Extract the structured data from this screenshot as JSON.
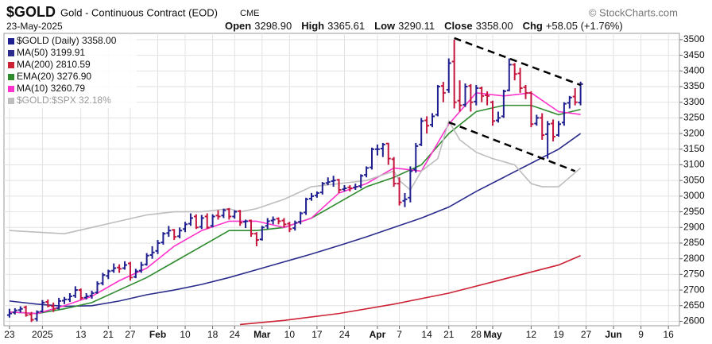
{
  "chart_data": {
    "type": "ohlc",
    "title": "$GOLD",
    "subtitle": "Gold - Continuous Contract (EOD)",
    "exchange": "CME",
    "source": "© StockCharts.com",
    "date": "23-May-2025",
    "summary": [
      {
        "label": "Open",
        "value": "3298.90"
      },
      {
        "label": "High",
        "value": "3365.61"
      },
      {
        "label": "Low",
        "value": "3290.11"
      },
      {
        "label": "Close",
        "value": "3358.00"
      },
      {
        "label": "Chg",
        "value": "+58.05 (+1.76%)"
      }
    ],
    "up_color": "#1f1f8f",
    "down_color": "#c4143c",
    "grid": true,
    "legend": "top-left",
    "xlim": [
      -1,
      122
    ],
    "ylim": [
      2586,
      3520
    ],
    "yticks": [
      2600,
      2650,
      2700,
      2750,
      2800,
      2850,
      2900,
      2950,
      3000,
      3050,
      3100,
      3150,
      3200,
      3250,
      3300,
      3350,
      3400,
      3450,
      3500
    ],
    "xticks": [
      {
        "value": 0,
        "label": "23"
      },
      {
        "value": 6,
        "label": "2025"
      },
      {
        "value": 13,
        "label": "13"
      },
      {
        "value": 18,
        "label": "21"
      },
      {
        "value": 22,
        "label": "27"
      },
      {
        "value": 27,
        "label": "Feb"
      },
      {
        "value": 32,
        "label": "10"
      },
      {
        "value": 37,
        "label": "18"
      },
      {
        "value": 41,
        "label": "24"
      },
      {
        "value": 46,
        "label": "Mar"
      },
      {
        "value": 51,
        "label": "10"
      },
      {
        "value": 56,
        "label": "17"
      },
      {
        "value": 61,
        "label": "24"
      },
      {
        "value": 67,
        "label": "Apr"
      },
      {
        "value": 71,
        "label": "7"
      },
      {
        "value": 76,
        "label": "14"
      },
      {
        "value": 80,
        "label": "21"
      },
      {
        "value": 85,
        "label": "28"
      },
      {
        "value": 88,
        "label": "May"
      },
      {
        "value": 95,
        "label": "12"
      },
      {
        "value": 100,
        "label": "19"
      },
      {
        "value": 105,
        "label": "27"
      },
      {
        "value": 110,
        "label": "Jun"
      },
      {
        "value": 115,
        "label": "9"
      },
      {
        "value": 120,
        "label": "16"
      }
    ],
    "series": [
      {
        "name": "$GOLD (Daily) 3358.00",
        "color": "#1f1f8f",
        "kind": "ohlc",
        "values": [
          [
            2620,
            2640,
            2612,
            2625
          ],
          [
            2628,
            2642,
            2622,
            2635
          ],
          [
            2636,
            2648,
            2628,
            2640
          ],
          [
            2645,
            2650,
            2615,
            2620
          ],
          [
            2622,
            2630,
            2598,
            2605
          ],
          [
            2608,
            2635,
            2600,
            2630
          ],
          [
            2632,
            2668,
            2628,
            2660
          ],
          [
            2662,
            2670,
            2645,
            2650
          ],
          [
            2648,
            2660,
            2630,
            2640
          ],
          [
            2642,
            2675,
            2638,
            2665
          ],
          [
            2666,
            2678,
            2655,
            2670
          ],
          [
            2670,
            2690,
            2662,
            2680
          ],
          [
            2682,
            2712,
            2675,
            2700
          ],
          [
            2700,
            2705,
            2668,
            2675
          ],
          [
            2676,
            2690,
            2670,
            2680
          ],
          [
            2682,
            2698,
            2672,
            2690
          ],
          [
            2692,
            2728,
            2688,
            2720
          ],
          [
            2722,
            2755,
            2715,
            2748
          ],
          [
            2745,
            2765,
            2735,
            2760
          ],
          [
            2762,
            2785,
            2755,
            2770
          ],
          [
            2772,
            2782,
            2755,
            2768
          ],
          [
            2770,
            2792,
            2765,
            2780
          ],
          [
            2785,
            2790,
            2730,
            2740
          ],
          [
            2742,
            2768,
            2738,
            2760
          ],
          [
            2762,
            2790,
            2755,
            2780
          ],
          [
            2782,
            2818,
            2778,
            2810
          ],
          [
            2812,
            2840,
            2800,
            2820
          ],
          [
            2825,
            2860,
            2815,
            2850
          ],
          [
            2852,
            2885,
            2845,
            2880
          ],
          [
            2882,
            2905,
            2870,
            2890
          ],
          [
            2892,
            2895,
            2860,
            2870
          ],
          [
            2872,
            2900,
            2865,
            2890
          ],
          [
            2895,
            2918,
            2885,
            2910
          ],
          [
            2912,
            2945,
            2905,
            2930
          ],
          [
            2935,
            2942,
            2895,
            2900
          ],
          [
            2902,
            2940,
            2895,
            2930
          ],
          [
            2935,
            2945,
            2895,
            2900
          ],
          [
            2905,
            2942,
            2900,
            2935
          ],
          [
            2938,
            2955,
            2925,
            2935
          ],
          [
            2938,
            2960,
            2930,
            2955
          ],
          [
            2958,
            2962,
            2925,
            2935
          ],
          [
            2935,
            2955,
            2928,
            2950
          ],
          [
            2952,
            2956,
            2905,
            2915
          ],
          [
            2918,
            2925,
            2898,
            2920
          ],
          [
            2922,
            2925,
            2870,
            2880
          ],
          [
            2880,
            2885,
            2840,
            2860
          ],
          [
            2862,
            2905,
            2858,
            2900
          ],
          [
            2905,
            2930,
            2895,
            2920
          ],
          [
            2922,
            2935,
            2910,
            2925
          ],
          [
            2928,
            2932,
            2910,
            2920
          ],
          [
            2922,
            2930,
            2900,
            2910
          ],
          [
            2912,
            2918,
            2885,
            2895
          ],
          [
            2898,
            2922,
            2890,
            2915
          ],
          [
            2918,
            2950,
            2910,
            2945
          ],
          [
            2948,
            2995,
            2940,
            2990
          ],
          [
            2992,
            3010,
            2985,
            3000
          ],
          [
            3002,
            3015,
            2995,
            3010
          ],
          [
            3012,
            3045,
            3005,
            3040
          ],
          [
            3042,
            3060,
            3035,
            3045
          ],
          [
            3048,
            3065,
            3030,
            3050
          ],
          [
            3052,
            3055,
            3010,
            3020
          ],
          [
            3022,
            3035,
            3015,
            3025
          ],
          [
            3028,
            3035,
            3015,
            3025
          ],
          [
            3028,
            3040,
            3020,
            3030
          ],
          [
            3032,
            3070,
            3025,
            3065
          ],
          [
            3068,
            3095,
            3060,
            3090
          ],
          [
            3092,
            3155,
            3085,
            3150
          ],
          [
            3150,
            3165,
            3130,
            3150
          ],
          [
            3152,
            3170,
            3125,
            3165
          ],
          [
            3168,
            3170,
            3100,
            3120
          ],
          [
            3118,
            3125,
            3030,
            3040
          ],
          [
            3040,
            3060,
            2970,
            2980
          ],
          [
            2985,
            3010,
            2965,
            2990
          ],
          [
            2995,
            3095,
            2980,
            3080
          ],
          [
            3085,
            3170,
            3075,
            3160
          ],
          [
            3165,
            3250,
            3160,
            3240
          ],
          [
            3242,
            3255,
            3200,
            3225
          ],
          [
            3228,
            3265,
            3220,
            3255
          ],
          [
            3260,
            3355,
            3255,
            3350
          ],
          [
            3352,
            3365,
            3300,
            3330
          ],
          [
            3340,
            3440,
            3330,
            3425
          ],
          [
            3430,
            3500,
            3280,
            3300
          ],
          [
            3305,
            3370,
            3270,
            3290
          ],
          [
            3292,
            3360,
            3285,
            3350
          ],
          [
            3352,
            3358,
            3270,
            3300
          ],
          [
            3302,
            3355,
            3290,
            3345
          ],
          [
            3345,
            3350,
            3300,
            3320
          ],
          [
            3322,
            3335,
            3290,
            3320
          ],
          [
            3300,
            3305,
            3225,
            3240
          ],
          [
            3242,
            3270,
            3235,
            3250
          ],
          [
            3255,
            3340,
            3250,
            3335
          ],
          [
            3338,
            3440,
            3335,
            3420
          ],
          [
            3420,
            3425,
            3370,
            3390
          ],
          [
            3392,
            3410,
            3330,
            3345
          ],
          [
            3348,
            3355,
            3310,
            3330
          ],
          [
            3330,
            3335,
            3220,
            3230
          ],
          [
            3232,
            3260,
            3225,
            3250
          ],
          [
            3250,
            3265,
            3180,
            3195
          ],
          [
            3198,
            3240,
            3120,
            3230
          ],
          [
            3232,
            3245,
            3175,
            3190
          ],
          [
            3195,
            3240,
            3190,
            3230
          ],
          [
            3235,
            3300,
            3225,
            3295
          ],
          [
            3298,
            3320,
            3280,
            3315
          ],
          [
            3318,
            3345,
            3290,
            3300
          ],
          [
            3298.9,
            3365.61,
            3290.11,
            3358
          ]
        ]
      },
      {
        "name": "MA(50) 3199.91",
        "color": "#2b2b8c",
        "kind": "line",
        "x": [
          0,
          5,
          10,
          15,
          20,
          25,
          30,
          35,
          40,
          45,
          50,
          55,
          60,
          65,
          70,
          75,
          80,
          85,
          90,
          95,
          100,
          104
        ],
        "values": [
          2665,
          2655,
          2648,
          2650,
          2665,
          2685,
          2700,
          2718,
          2740,
          2765,
          2790,
          2815,
          2842,
          2870,
          2900,
          2930,
          2965,
          3015,
          3060,
          3105,
          3150,
          3200
        ]
      },
      {
        "name": "MA(200) 2810.59",
        "color": "#cc2233",
        "kind": "line",
        "x": [
          42,
          50,
          60,
          70,
          80,
          90,
          100,
          104
        ],
        "values": [
          2590,
          2603,
          2625,
          2655,
          2690,
          2735,
          2780,
          2810
        ]
      },
      {
        "name": "EMA(20) 3276.90",
        "color": "#2e8b2e",
        "kind": "line",
        "x": [
          0,
          5,
          10,
          15,
          20,
          25,
          30,
          35,
          40,
          45,
          50,
          55,
          60,
          65,
          70,
          75,
          80,
          85,
          90,
          95,
          100,
          104
        ],
        "values": [
          2630,
          2625,
          2640,
          2660,
          2700,
          2740,
          2790,
          2840,
          2890,
          2890,
          2900,
          2930,
          2980,
          3030,
          3060,
          3100,
          3200,
          3270,
          3290,
          3290,
          3260,
          3277
        ]
      },
      {
        "name": "MA(10) 3260.79",
        "color": "#ff33cc",
        "kind": "line",
        "x": [
          0,
          5,
          10,
          15,
          20,
          25,
          30,
          35,
          40,
          45,
          50,
          55,
          60,
          65,
          70,
          75,
          80,
          85,
          90,
          95,
          100,
          104
        ],
        "values": [
          2630,
          2625,
          2650,
          2680,
          2730,
          2770,
          2840,
          2890,
          2920,
          2920,
          2900,
          2930,
          3010,
          3040,
          3090,
          3080,
          3230,
          3330,
          3320,
          3330,
          3270,
          3261
        ]
      },
      {
        "name": "$GOLD:$SPX 32.18%",
        "color": "#bdbdbd",
        "kind": "line",
        "x": [
          0,
          10,
          15,
          20,
          25,
          30,
          35,
          40,
          42,
          45,
          50,
          55,
          60,
          65,
          70,
          71,
          73,
          75,
          78,
          80,
          82,
          85,
          88,
          90,
          92,
          95,
          97,
          100,
          104
        ],
        "values": [
          2890,
          2880,
          2900,
          2920,
          2940,
          2950,
          2950,
          2960,
          2950,
          2960,
          2990,
          3030,
          3040,
          3050,
          3080,
          3050,
          3020,
          3080,
          3120,
          3240,
          3180,
          3140,
          3120,
          3110,
          3100,
          3040,
          3030,
          3030,
          3090
        ]
      }
    ],
    "trendlines": [
      {
        "x": [
          81,
          104
        ],
        "values": [
          3505,
          3355
        ]
      },
      {
        "x": [
          80,
          103
        ],
        "values": [
          3236,
          3080
        ]
      }
    ]
  }
}
